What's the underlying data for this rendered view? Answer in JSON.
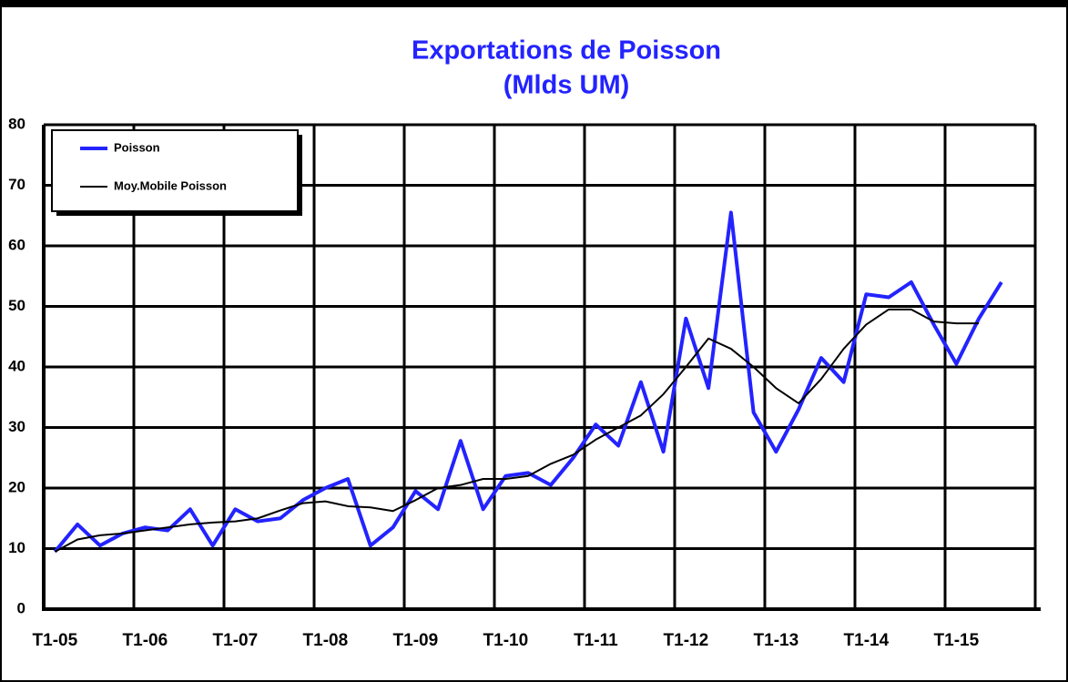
{
  "chart_data": {
    "type": "line",
    "title": "Exportations de Poisson",
    "subtitle": "(Mlds UM)",
    "categories": [
      "T1-05",
      null,
      null,
      null,
      "T1-06",
      null,
      null,
      null,
      "T1-07",
      null,
      null,
      null,
      "T1-08",
      null,
      null,
      null,
      "T1-09",
      null,
      null,
      null,
      "T1-10",
      null,
      null,
      null,
      "T1-11",
      null,
      null,
      null,
      "T1-12",
      null,
      null,
      null,
      "T1-13",
      null,
      null,
      null,
      "T1-14",
      null,
      null,
      null,
      "T1-15",
      null,
      null
    ],
    "series": [
      {
        "name": "Poisson",
        "color": "#2323ff",
        "values": [
          9.5,
          14,
          10.5,
          12.5,
          13.5,
          13,
          16.5,
          10.5,
          16.5,
          14.5,
          15,
          18,
          20,
          21.5,
          10.5,
          13.5,
          19.5,
          16.5,
          27.8,
          16.5,
          22,
          22.5,
          20.5,
          25,
          30.5,
          27,
          37.5,
          26,
          48,
          36.5,
          65.5,
          32.5,
          26,
          33,
          41.5,
          37.5,
          52,
          51.5,
          54,
          47,
          40.5,
          48,
          54
        ]
      },
      {
        "name": "Moy.Mobile Poisson",
        "color": "#000000",
        "values": [
          9.5,
          11.5,
          12.2,
          12.5,
          13,
          13.5,
          14,
          14.3,
          14.5,
          15,
          16.3,
          17.5,
          17.8,
          17,
          16.8,
          16.2,
          18,
          20,
          20.5,
          21.5,
          21.5,
          22,
          24,
          25.5,
          28,
          30,
          32,
          35.5,
          40,
          44.7,
          43,
          40,
          36.5,
          34,
          38,
          43,
          47,
          49.5,
          49.5,
          47.5,
          47.2,
          47.2,
          null
        ]
      }
    ],
    "ylim": [
      0,
      80
    ],
    "yticks": [
      0,
      10,
      20,
      30,
      40,
      50,
      60,
      70,
      80
    ],
    "grid": true,
    "legend": "upper left"
  }
}
